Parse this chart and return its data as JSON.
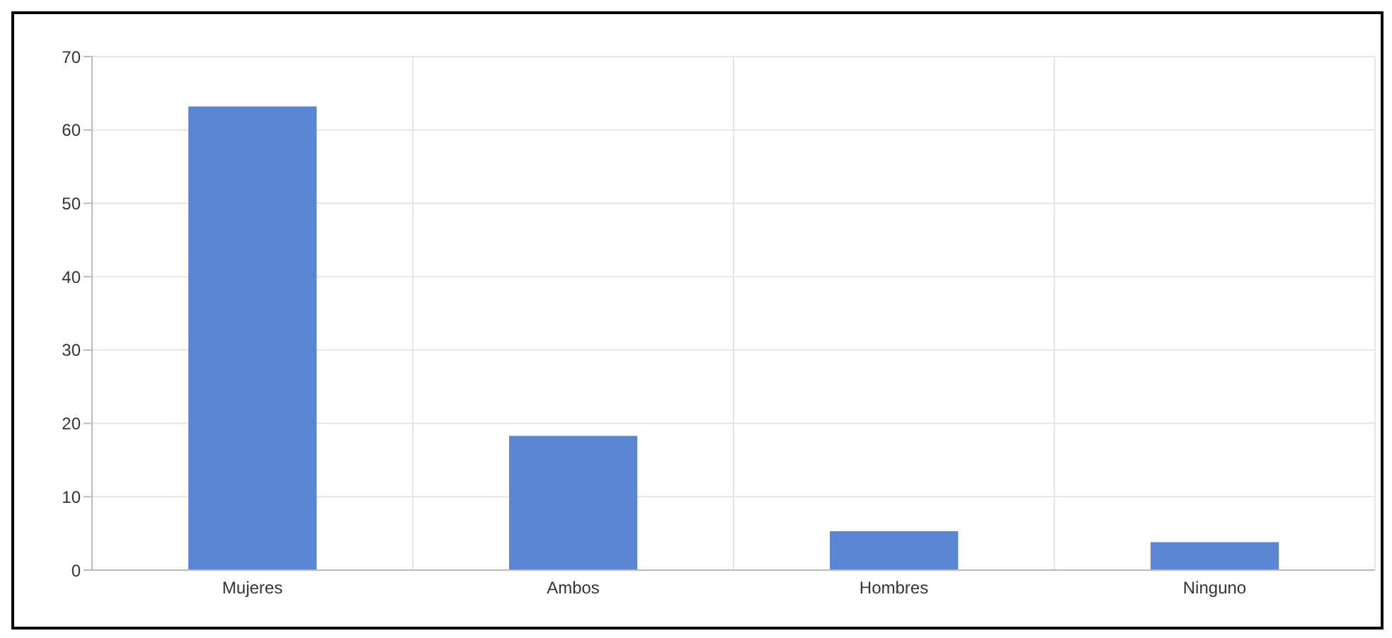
{
  "chart_data": {
    "type": "bar",
    "categories": [
      "Mujeres",
      "Ambos",
      "Hombres",
      "Ninguno"
    ],
    "values": [
      63.2,
      18.3,
      5.3,
      3.8
    ],
    "color": "#5b87d2",
    "ylim": [
      0,
      70
    ],
    "yticks": [
      0,
      10,
      20,
      30,
      40,
      50,
      60,
      70
    ],
    "grid": true
  }
}
